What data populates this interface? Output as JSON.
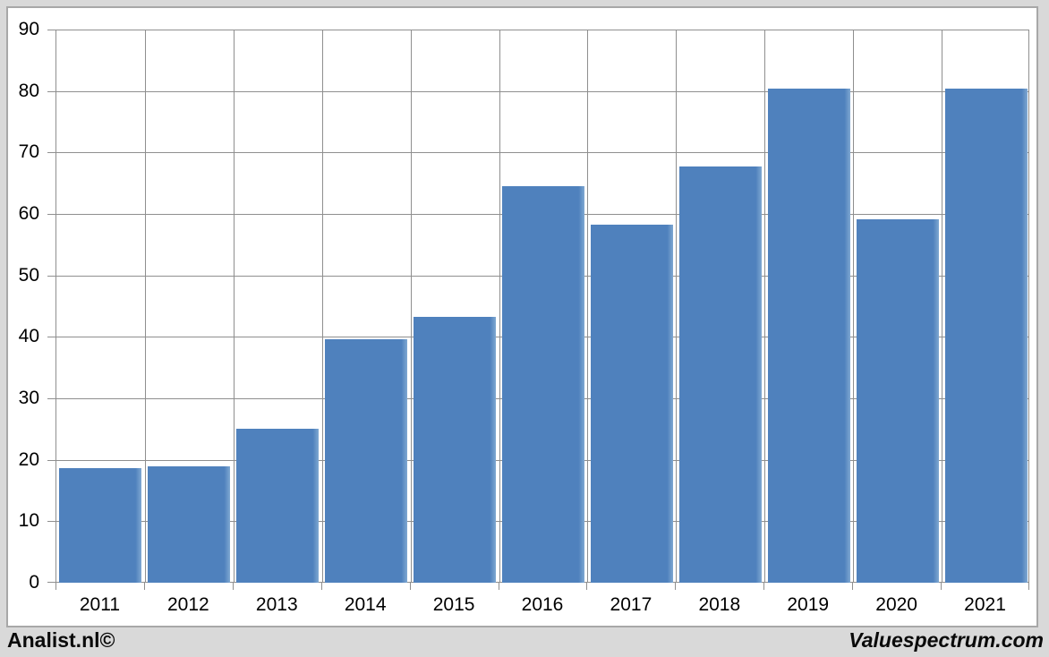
{
  "page": {
    "background": "#d9d9d9"
  },
  "panel": {
    "background": "#ffffff",
    "border_color": "#a8a8a8"
  },
  "footer": {
    "left_brand": "Analist.nl©",
    "right_brand": "Valuespectrum.com"
  },
  "chart_data": {
    "type": "bar",
    "title": "",
    "xlabel": "",
    "ylabel": "",
    "categories": [
      "2011",
      "2012",
      "2013",
      "2014",
      "2015",
      "2016",
      "2017",
      "2018",
      "2019",
      "2020",
      "2021"
    ],
    "values": [
      18.8,
      19.1,
      25.2,
      39.8,
      43.4,
      64.6,
      58.4,
      67.8,
      80.5,
      59.2,
      80.5
    ],
    "ylim": [
      0,
      90
    ],
    "yticks": [
      0,
      10,
      20,
      30,
      40,
      50,
      60,
      70,
      80,
      90
    ],
    "grid": "both",
    "legend": "none",
    "bar_color": "#4f81bd",
    "bar_highlight": "#7fa8d2",
    "grid_color": "#8f8f8f",
    "tick_label_color": "#000000"
  }
}
